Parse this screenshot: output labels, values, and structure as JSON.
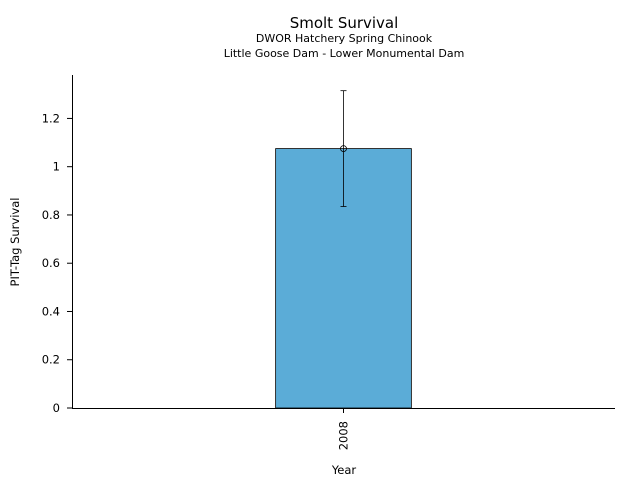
{
  "chart_data": {
    "type": "bar",
    "title": "Smolt Survival",
    "subtitles": [
      "DWOR Hatchery Spring Chinook",
      "Little Goose Dam - Lower Monumental Dam"
    ],
    "xlabel": "Year",
    "ylabel": "PIT-Tag Survival",
    "categories": [
      "2008"
    ],
    "series": [
      {
        "values": [
          1.075
        ],
        "error_low": [
          0.835
        ],
        "error_high": [
          1.315
        ],
        "color": "#5BACD7"
      }
    ],
    "ylim": [
      0,
      1.38
    ],
    "yticks": [
      0,
      0.2,
      0.4,
      0.6,
      0.8,
      1,
      1.2
    ],
    "ytick_labels": [
      "0",
      "0.2",
      "0.4",
      "0.6",
      "0.8",
      "1",
      "1.2"
    ],
    "grid": false,
    "legend": "none"
  }
}
